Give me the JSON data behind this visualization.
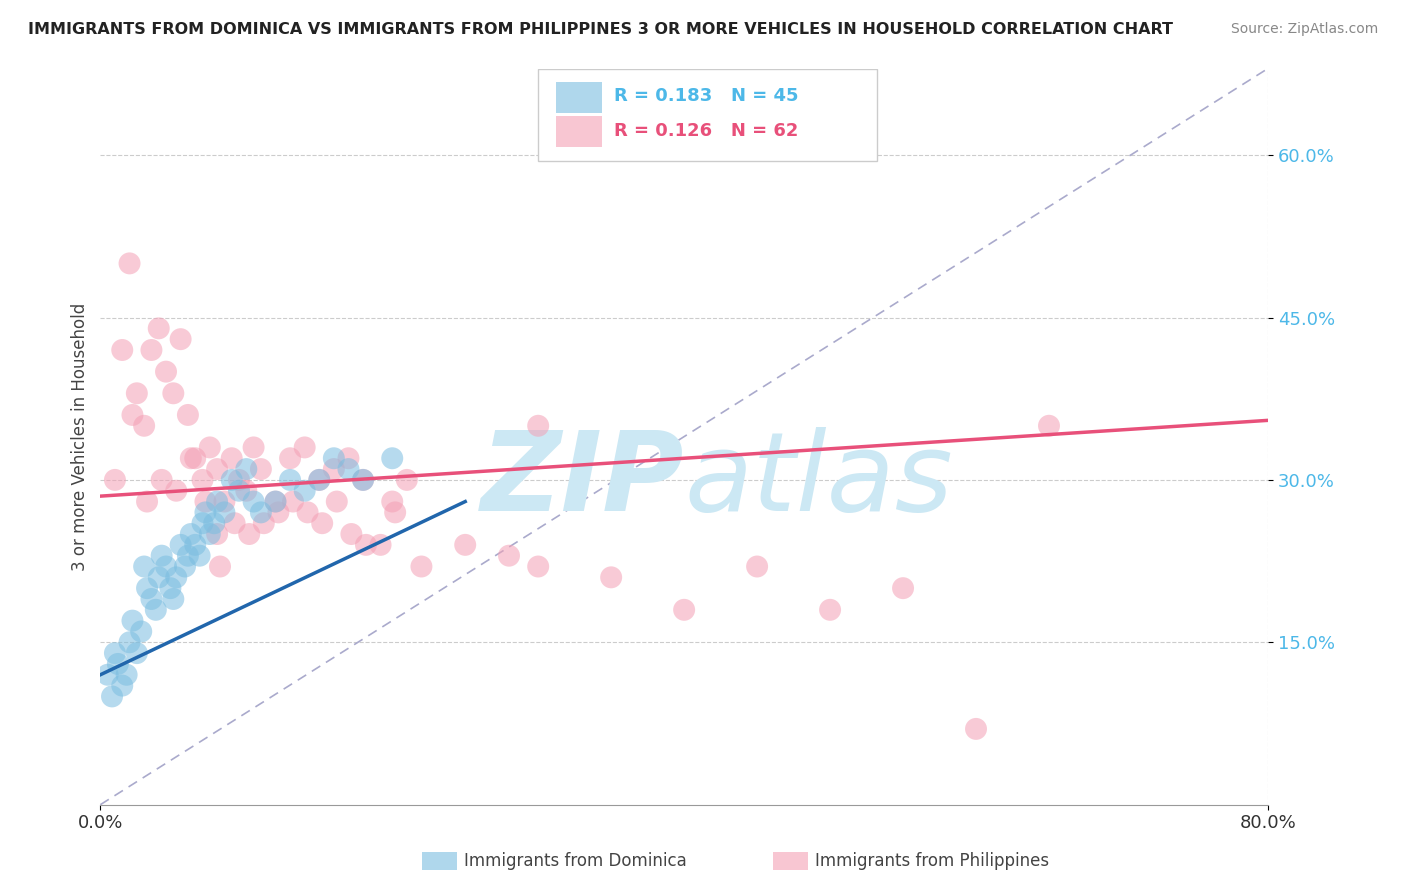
{
  "title": "IMMIGRANTS FROM DOMINICA VS IMMIGRANTS FROM PHILIPPINES 3 OR MORE VEHICLES IN HOUSEHOLD CORRELATION CHART",
  "source": "Source: ZipAtlas.com",
  "ylabel_label": "3 or more Vehicles in Household",
  "legend_dominica": "Immigrants from Dominica",
  "legend_philippines": "Immigrants from Philippines",
  "R_dominica": 0.183,
  "N_dominica": 45,
  "R_philippines": 0.126,
  "N_philippines": 62,
  "dominica_color": "#7bbde0",
  "philippines_color": "#f4a0b5",
  "dominica_trend_color": "#2166ac",
  "philippines_trend_color": "#e8507a",
  "diag_line_color": "#aaaacc",
  "grid_color": "#cccccc",
  "background_color": "#ffffff",
  "watermark_color": "#cce8f4",
  "ytick_color": "#4db8e8",
  "dominica_x": [
    0.5,
    0.8,
    1.0,
    1.2,
    1.5,
    1.8,
    2.0,
    2.2,
    2.5,
    2.8,
    3.0,
    3.2,
    3.5,
    3.8,
    4.0,
    4.2,
    4.5,
    4.8,
    5.0,
    5.2,
    5.5,
    5.8,
    6.0,
    6.2,
    6.5,
    6.8,
    7.0,
    7.2,
    7.5,
    7.8,
    8.0,
    8.5,
    9.0,
    9.5,
    10.0,
    10.5,
    11.0,
    12.0,
    13.0,
    14.0,
    15.0,
    16.0,
    17.0,
    18.0,
    20.0
  ],
  "dominica_y": [
    12.0,
    10.0,
    14.0,
    13.0,
    11.0,
    12.0,
    15.0,
    17.0,
    14.0,
    16.0,
    22.0,
    20.0,
    19.0,
    18.0,
    21.0,
    23.0,
    22.0,
    20.0,
    19.0,
    21.0,
    24.0,
    22.0,
    23.0,
    25.0,
    24.0,
    23.0,
    26.0,
    27.0,
    25.0,
    26.0,
    28.0,
    27.0,
    30.0,
    29.0,
    31.0,
    28.0,
    27.0,
    28.0,
    30.0,
    29.0,
    30.0,
    32.0,
    31.0,
    30.0,
    32.0
  ],
  "philippines_x": [
    1.0,
    1.5,
    2.0,
    2.5,
    3.0,
    3.5,
    4.0,
    4.5,
    5.0,
    5.5,
    6.0,
    6.5,
    7.0,
    7.5,
    8.0,
    8.5,
    9.0,
    9.5,
    10.0,
    10.5,
    11.0,
    12.0,
    13.0,
    14.0,
    15.0,
    16.0,
    17.0,
    18.0,
    20.0,
    22.0,
    25.0,
    28.0,
    30.0,
    35.0,
    40.0,
    45.0,
    50.0,
    55.0,
    60.0,
    65.0,
    2.2,
    3.2,
    4.2,
    5.2,
    6.2,
    7.2,
    8.2,
    9.2,
    10.2,
    11.2,
    12.2,
    13.2,
    14.2,
    15.2,
    16.2,
    17.2,
    18.2,
    19.2,
    20.2,
    21.0,
    30.0,
    8.0
  ],
  "philippines_y": [
    30.0,
    42.0,
    50.0,
    38.0,
    35.0,
    42.0,
    44.0,
    40.0,
    38.0,
    43.0,
    36.0,
    32.0,
    30.0,
    33.0,
    31.0,
    28.0,
    32.0,
    30.0,
    29.0,
    33.0,
    31.0,
    28.0,
    32.0,
    33.0,
    30.0,
    31.0,
    32.0,
    30.0,
    28.0,
    22.0,
    24.0,
    23.0,
    35.0,
    21.0,
    18.0,
    22.0,
    18.0,
    20.0,
    7.0,
    35.0,
    36.0,
    28.0,
    30.0,
    29.0,
    32.0,
    28.0,
    22.0,
    26.0,
    25.0,
    26.0,
    27.0,
    28.0,
    27.0,
    26.0,
    28.0,
    25.0,
    24.0,
    24.0,
    27.0,
    30.0,
    22.0,
    25.0
  ]
}
